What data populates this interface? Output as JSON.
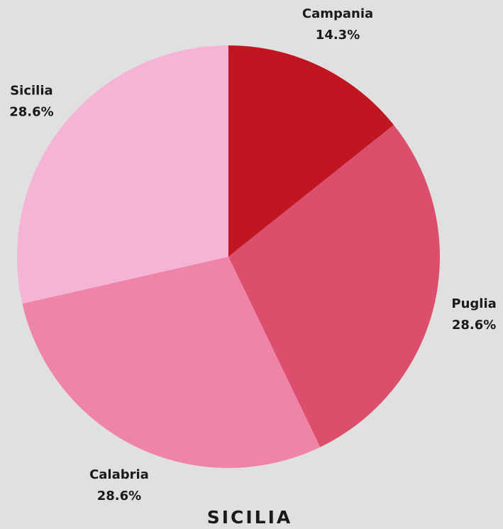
{
  "chart_data": {
    "type": "pie",
    "title": "SICILIA",
    "categories": [
      "Campania",
      "Puglia",
      "Calabria",
      "Sicilia"
    ],
    "values": [
      14.3,
      28.6,
      28.6,
      28.6
    ],
    "value_labels": [
      "14.3%",
      "28.6%",
      "28.6%",
      "28.6%"
    ],
    "colors": [
      "#c01622",
      "#dc4f6c",
      "#ef83a8",
      "#f5b3d6"
    ]
  }
}
